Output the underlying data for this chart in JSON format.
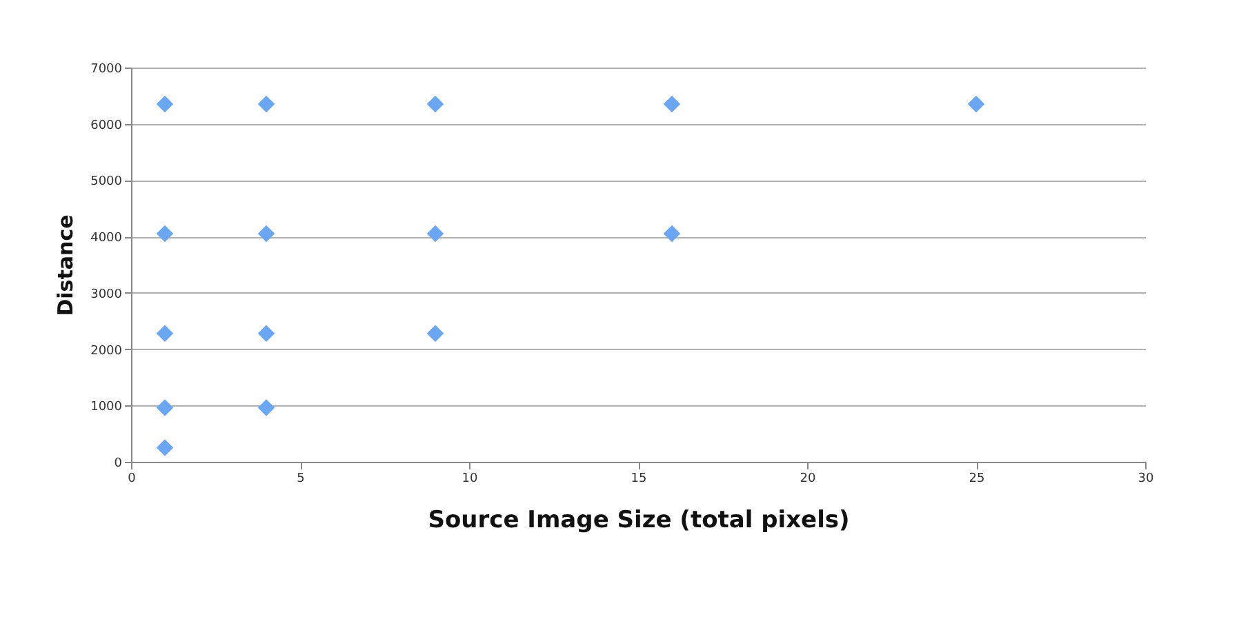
{
  "chart_data": {
    "type": "scatter",
    "xlabel": "Source Image Size (total pixels)",
    "ylabel": "Distance",
    "series": [
      {
        "color": "#6aa6f2",
        "x": [
          1,
          1,
          1,
          1,
          1,
          4,
          4,
          4,
          4,
          9,
          9,
          9,
          16,
          16,
          25
        ],
        "values": [
          6350,
          4050,
          2280,
          960,
          250,
          6350,
          4050,
          2280,
          960,
          6350,
          4050,
          2280,
          6350,
          4050,
          6350
        ]
      }
    ],
    "xlim": [
      0,
      30
    ],
    "xticks": [
      0,
      5,
      10,
      15,
      20,
      25,
      30
    ],
    "ylim": [
      0,
      7000
    ],
    "yticks": [
      0,
      1000,
      2000,
      3000,
      4000,
      5000,
      6000,
      7000
    ],
    "grid": "y",
    "marker": "diamond",
    "legend": false
  }
}
